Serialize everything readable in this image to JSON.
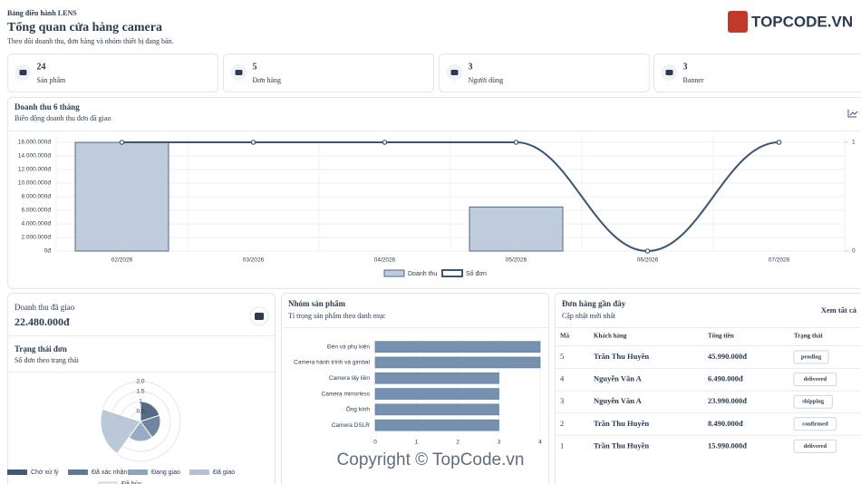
{
  "header": {
    "brand": "Bảng điều hành LENS",
    "title": "Tổng quan cửa hàng camera",
    "subtitle": "Theo dõi doanh thu, đơn hàng và nhóm thiết bị đang bán."
  },
  "logo": "TOPCODE.VN",
  "watermark": "Copyright © TopCode.vn",
  "stats": [
    {
      "value": 24,
      "label": "Sản phẩm"
    },
    {
      "value": 5,
      "label": "Đơn hàng"
    },
    {
      "value": 3,
      "label": "Người dùng"
    },
    {
      "value": 3,
      "label": "Banner"
    }
  ],
  "sales": {
    "label": "Doanh thu đã giao",
    "value": "22.480.000đ"
  },
  "orders": {
    "title": "Đơn hàng gần đây",
    "subtitle": "Cập nhật mới nhất",
    "link": "Xem tất cả",
    "columns": [
      "Mã",
      "Khách hàng",
      "Tổng tiền",
      "Trạng thái"
    ],
    "rows": [
      [
        "5",
        "Trần Thu Huyền",
        "45.990.000đ",
        "pending"
      ],
      [
        "4",
        "Nguyễn Văn A",
        "6.490.000đ",
        "delivered"
      ],
      [
        "3",
        "Nguyễn Văn A",
        "23.990.000đ",
        "shipping"
      ],
      [
        "2",
        "Trần Thu Huyền",
        "8.490.000đ",
        "confirmed"
      ],
      [
        "1",
        "Trần Thu Huyền",
        "15.990.000đ",
        "delivered"
      ]
    ]
  },
  "chart_data": [
    {
      "type": "bar",
      "title": "Doanh thu 6 tháng",
      "subtitle": "Biến động doanh thu đơn đã giao",
      "categories": [
        "02/2026",
        "03/2026",
        "04/2026",
        "05/2026",
        "06/2026",
        "07/2026"
      ],
      "series": [
        {
          "name": "Doanh thu",
          "type": "bar",
          "color": "#bfccdb",
          "values": [
            15990000,
            0,
            0,
            6490000,
            0,
            0
          ]
        },
        {
          "name": "Số đơn",
          "type": "line",
          "axis": "y2",
          "color": "#3b5574",
          "values": [
            1,
            1,
            1,
            1,
            0,
            1
          ]
        }
      ],
      "ylim": [
        0,
        16000000
      ],
      "yticks": [
        {
          "value": 0,
          "label": "0đ"
        },
        {
          "value": 2000000,
          "label": "2.000.000đ"
        },
        {
          "value": 4000000,
          "label": "4.000.000đ"
        },
        {
          "value": 6000000,
          "label": "6.000.000đ"
        },
        {
          "value": 8000000,
          "label": "8.000.000đ"
        },
        {
          "value": 10000000,
          "label": "10.000.000đ"
        },
        {
          "value": 12000000,
          "label": "12.000.000đ"
        },
        {
          "value": 14000000,
          "label": "14.000.000đ"
        },
        {
          "value": 16000000,
          "label": "16.000.000đ"
        }
      ],
      "y2lim": [
        0,
        1
      ],
      "y2ticks": [
        0,
        1
      ],
      "grid": true
    },
    {
      "type": "polar",
      "title": "Trạng thái đơn",
      "subtitle": "Số đơn theo trạng thái",
      "categories": [
        "Chờ xử lý",
        "Đã xác nhận",
        "Đang giao",
        "Đã giao",
        "Đã hủy"
      ],
      "values": [
        1,
        1,
        1,
        2,
        0
      ],
      "colors": [
        "#425a7a",
        "#5f7896",
        "#8ea3bd",
        "#b3c2d4",
        "#dde3ea"
      ],
      "rlim": [
        0,
        2
      ],
      "rticks": [
        0.5,
        1,
        1.5,
        {
          "value": 2,
          "label": "2.0"
        }
      ],
      "grid": true
    },
    {
      "type": "bar",
      "orientation": "horizontal",
      "title": "Nhóm sản phẩm",
      "subtitle": "Tỉ trọng sản phẩm theo danh mục",
      "categories": [
        "Đèn và phụ kiện",
        "Camera hành trình và gimbal",
        "Camera lấy liền",
        "Camera mirrorless",
        "Ống kính",
        "Camera DSLR"
      ],
      "values": [
        4,
        4,
        3,
        3,
        3,
        3
      ],
      "color": "#7690b0",
      "xlim": [
        0,
        4
      ],
      "xticks": [
        0,
        1,
        2,
        3,
        4
      ],
      "grid": true
    }
  ]
}
